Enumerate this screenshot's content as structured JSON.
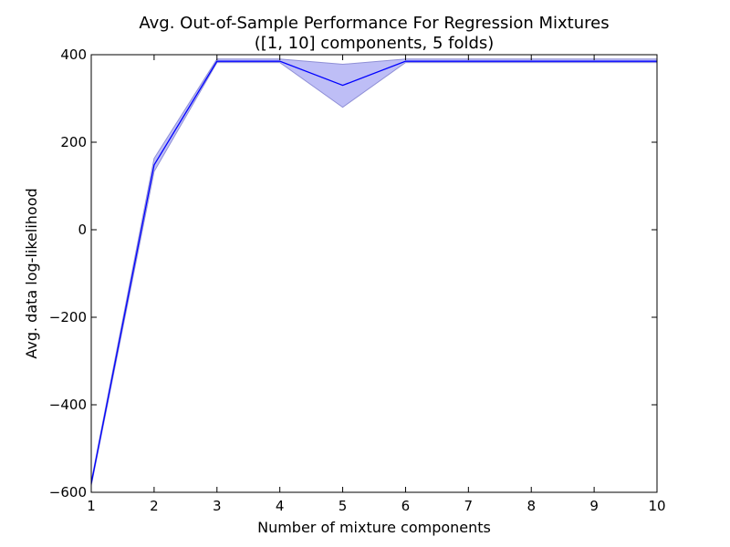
{
  "chart_data": {
    "type": "line",
    "title": "Avg. Out-of-Sample Performance For Regression Mixtures",
    "subtitle": "([1, 10] components, 5 folds)",
    "xlabel": "Number of mixture components",
    "ylabel": "Avg. data log-likelihood",
    "xlim": [
      1,
      10
    ],
    "ylim": [
      -600,
      400
    ],
    "xticks": [
      1,
      2,
      3,
      4,
      5,
      6,
      7,
      8,
      9,
      10
    ],
    "xtick_labels": [
      "1",
      "2",
      "3",
      "4",
      "5",
      "6",
      "7",
      "8",
      "9",
      "10"
    ],
    "yticks": [
      -600,
      -400,
      -200,
      0,
      200,
      400
    ],
    "ytick_labels": [
      "−600",
      "−400",
      "−200",
      "0",
      "200",
      "400"
    ],
    "grid": false,
    "series": [
      {
        "x": [
          1,
          2,
          3,
          4,
          5,
          6,
          7,
          8,
          9,
          10
        ],
        "values": [
          -580,
          148,
          385,
          385,
          330,
          385,
          385,
          385,
          385,
          385
        ],
        "lower": [
          -585,
          133,
          382,
          382,
          280,
          382,
          382,
          382,
          382,
          382
        ],
        "upper": [
          -575,
          163,
          390,
          390,
          378,
          390,
          390,
          390,
          390,
          390
        ]
      }
    ],
    "colors": {
      "line": "#0000ff",
      "band_fill": "#b3b3f5",
      "band_edge": "#8f8fd6",
      "axes": "#000000"
    }
  }
}
